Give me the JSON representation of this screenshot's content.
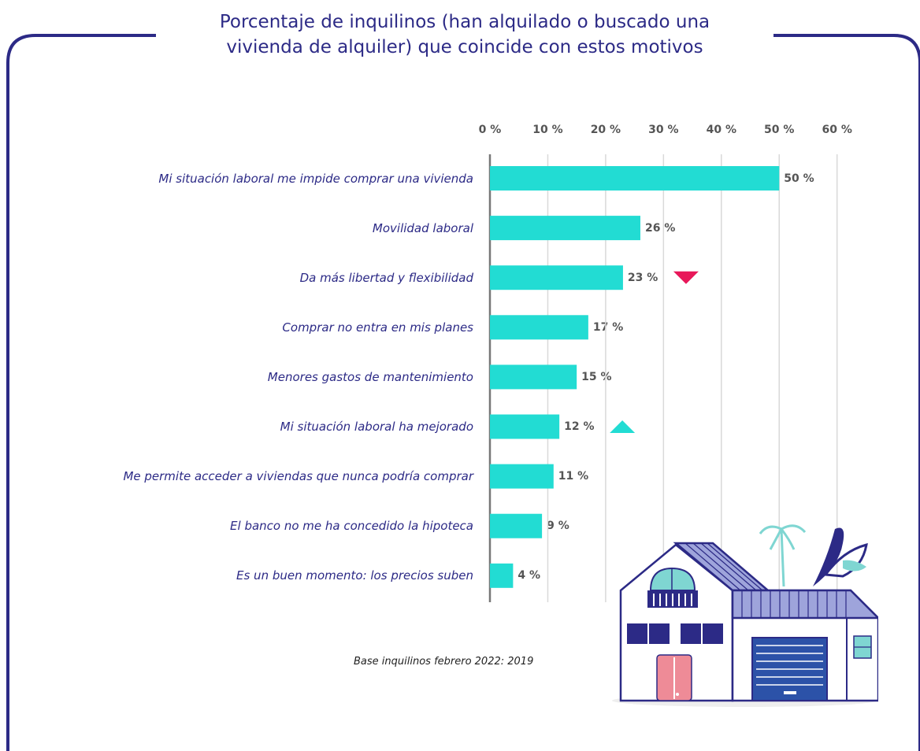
{
  "chart_data": {
    "type": "bar",
    "orientation": "horizontal",
    "title": "Porcentaje de inquilinos (han alquilado o buscado una vivienda de alquiler) que coincide con estos motivos",
    "title_lines": [
      "Porcentaje de inquilinos (han alquilado o buscado una",
      "vivienda de alquiler) que coincide con estos motivos"
    ],
    "categories": [
      "Mi situación laboral me impide comprar una vivienda",
      "Movilidad laboral",
      "Da más libertad y flexibilidad",
      "Comprar no entra en mis planes",
      "Menores gastos de mantenimiento",
      "Mi situación laboral ha mejorado",
      "Me permite acceder a viviendas que nunca podría comprar",
      "El banco no me ha concedido la hipoteca",
      "Es un buen momento: los precios suben"
    ],
    "values": [
      50,
      26,
      23,
      17,
      15,
      12,
      11,
      9,
      4
    ],
    "value_labels": [
      "50 %",
      "26 %",
      "23 %",
      "17 %",
      "15 %",
      "12 %",
      "11 %",
      "9 %",
      "4 %"
    ],
    "trend_markers": [
      null,
      null,
      "down",
      null,
      null,
      "up",
      null,
      null,
      null
    ],
    "xlim": [
      0,
      60
    ],
    "x_ticks": [
      "0 %",
      "10 %",
      "20 %",
      "30 %",
      "40 %",
      "50 %",
      "60 %"
    ],
    "x_axis_position": "top",
    "grid": true,
    "bar_color": "#22dcd3",
    "down_marker_color": "#e8185a",
    "up_marker_color": "#22dcd3"
  },
  "footnote": "Base inquilinos febrero 2022: 2019",
  "colors": {
    "frame": "#2c2a86",
    "title": "#2c2a86",
    "category_text": "#2c2a86",
    "value_text": "#555555",
    "gridline": "#d9d9d9"
  },
  "illustration": "house-illustration"
}
